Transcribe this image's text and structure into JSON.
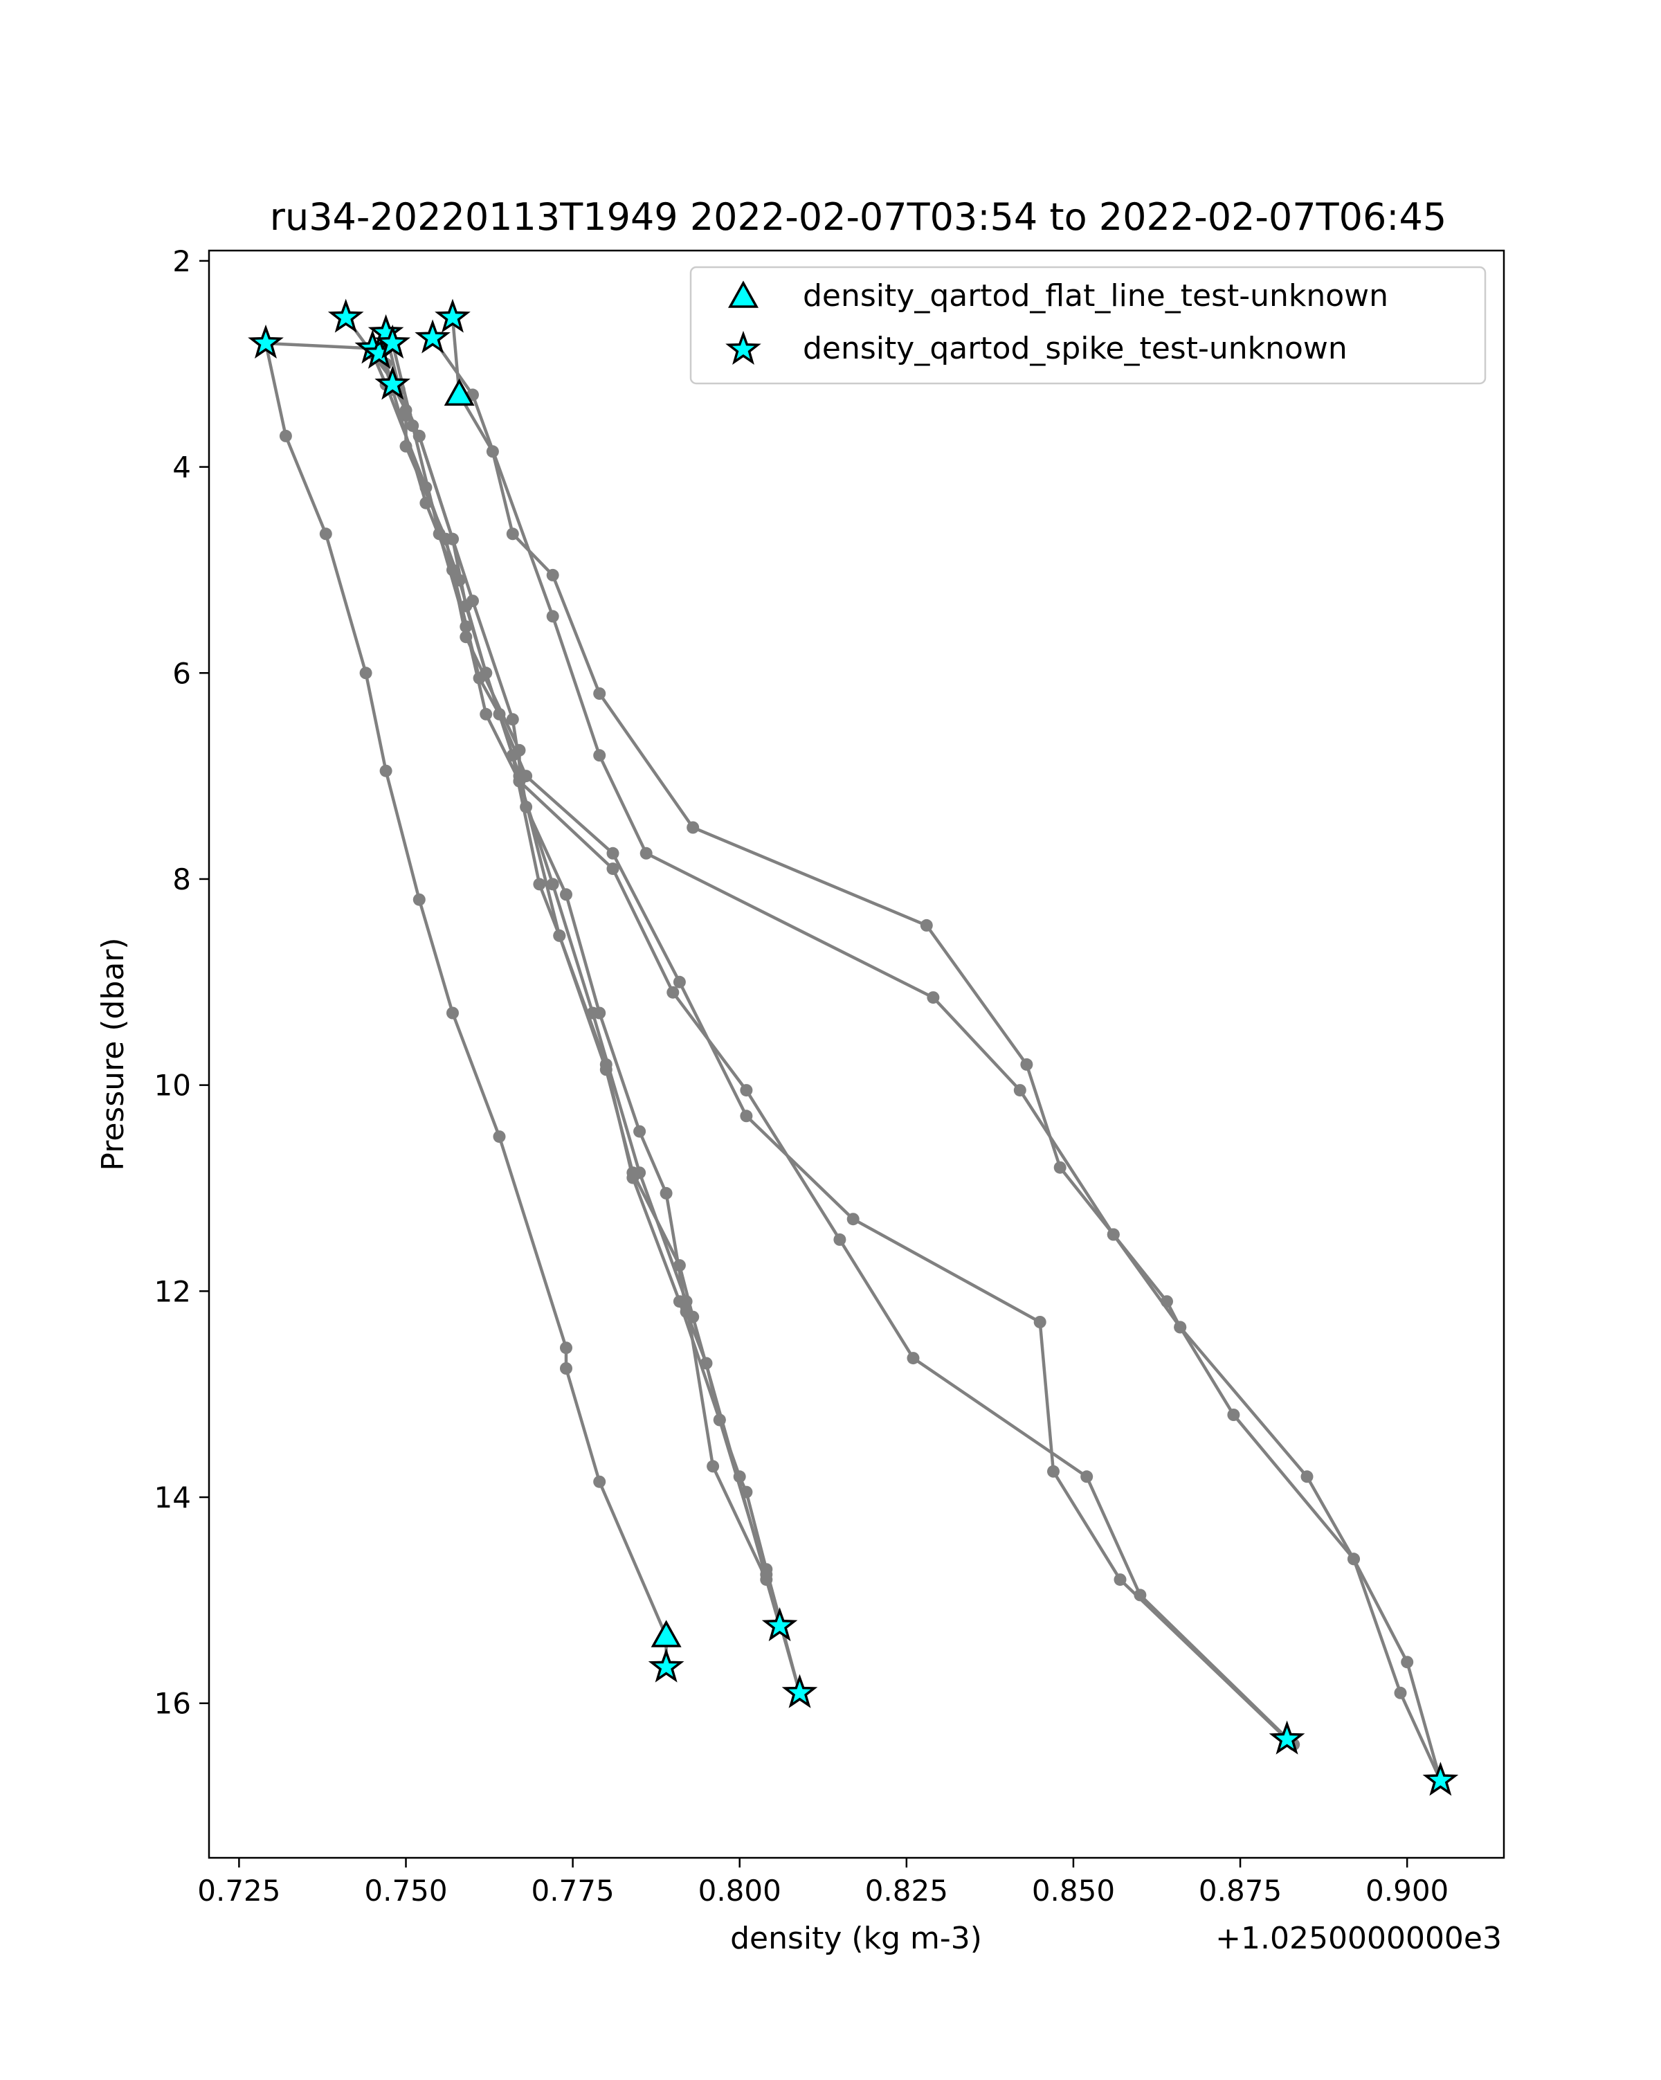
{
  "chart_data": {
    "type": "line",
    "title": "ru34-20220113T1949 2022-02-07T03:54 to 2022-02-07T06:45",
    "xlabel": "density (kg m-3)",
    "ylabel": "Pressure (dbar)",
    "x_offset_label": "+1.0250000000e3",
    "xlim": [
      1025.7205,
      1025.9145
    ],
    "ylim": [
      17.5,
      1.9
    ],
    "y_inverted": true,
    "xticks": [
      1025.725,
      1025.75,
      1025.775,
      1025.8,
      1025.825,
      1025.85,
      1025.875,
      1025.9
    ],
    "xtick_labels": [
      "0.725",
      "0.750",
      "0.775",
      "0.800",
      "0.825",
      "0.850",
      "0.875",
      "0.900"
    ],
    "yticks": [
      2,
      4,
      6,
      8,
      10,
      12,
      14,
      16
    ],
    "ytick_labels": [
      "2",
      "4",
      "6",
      "8",
      "10",
      "12",
      "14",
      "16"
    ],
    "grid": false,
    "legend_position": "top-right",
    "colors": {
      "line": "#808080",
      "flag_fill": "#00ffff",
      "flag_edge": "#000000"
    },
    "profiles": [
      {
        "points": [
          [
            1025.757,
            2.55
          ],
          [
            1025.758,
            3.3
          ],
          [
            1025.763,
            3.85
          ],
          [
            1025.766,
            4.65
          ],
          [
            1025.772,
            5.05
          ],
          [
            1025.779,
            6.2
          ],
          [
            1025.793,
            7.5
          ],
          [
            1025.828,
            8.45
          ],
          [
            1025.843,
            9.8
          ],
          [
            1025.848,
            10.8
          ],
          [
            1025.856,
            11.45
          ],
          [
            1025.864,
            12.1
          ],
          [
            1025.866,
            12.35
          ],
          [
            1025.885,
            13.8
          ],
          [
            1025.892,
            14.6
          ],
          [
            1025.9,
            15.6
          ],
          [
            1025.905,
            16.75
          ]
        ]
      },
      {
        "points": [
          [
            1025.754,
            2.75
          ],
          [
            1025.76,
            3.3
          ],
          [
            1025.772,
            5.45
          ],
          [
            1025.779,
            6.8
          ],
          [
            1025.786,
            7.75
          ],
          [
            1025.829,
            9.15
          ],
          [
            1025.842,
            10.05
          ],
          [
            1025.856,
            11.45
          ],
          [
            1025.866,
            12.35
          ],
          [
            1025.874,
            13.2
          ],
          [
            1025.892,
            14.6
          ],
          [
            1025.899,
            15.9
          ],
          [
            1025.905,
            16.75
          ]
        ]
      },
      {
        "points": [
          [
            1025.741,
            2.55
          ],
          [
            1025.749,
            3.25
          ],
          [
            1025.752,
            3.7
          ],
          [
            1025.757,
            4.7
          ],
          [
            1025.76,
            5.3
          ],
          [
            1025.766,
            6.45
          ],
          [
            1025.768,
            7.3
          ],
          [
            1025.774,
            8.15
          ],
          [
            1025.779,
            9.3
          ],
          [
            1025.785,
            10.45
          ],
          [
            1025.789,
            11.05
          ],
          [
            1025.792,
            12.2
          ],
          [
            1025.795,
            12.7
          ],
          [
            1025.797,
            13.25
          ],
          [
            1025.8,
            13.8
          ],
          [
            1025.801,
            13.95
          ],
          [
            1025.804,
            14.7
          ],
          [
            1025.809,
            15.9
          ]
        ]
      },
      {
        "points": [
          [
            1025.747,
            2.7
          ],
          [
            1025.75,
            3.5
          ],
          [
            1025.75,
            3.8
          ],
          [
            1025.756,
            4.7
          ],
          [
            1025.759,
            5.65
          ],
          [
            1025.767,
            6.75
          ],
          [
            1025.767,
            7.05
          ],
          [
            1025.772,
            8.05
          ],
          [
            1025.778,
            9.3
          ],
          [
            1025.785,
            10.85
          ],
          [
            1025.792,
            12.1
          ],
          [
            1025.796,
            13.7
          ],
          [
            1025.804,
            14.8
          ],
          [
            1025.806,
            15.25
          ]
        ]
      },
      {
        "points": [
          [
            1025.746,
            2.85
          ],
          [
            1025.748,
            3.25
          ],
          [
            1025.753,
            4.35
          ],
          [
            1025.757,
            5.0
          ],
          [
            1025.761,
            6.05
          ],
          [
            1025.764,
            6.4
          ],
          [
            1025.768,
            7.0
          ],
          [
            1025.781,
            7.75
          ],
          [
            1025.791,
            9.0
          ],
          [
            1025.801,
            10.3
          ],
          [
            1025.817,
            11.3
          ],
          [
            1025.845,
            12.3
          ],
          [
            1025.847,
            13.75
          ],
          [
            1025.857,
            14.8
          ],
          [
            1025.882,
            16.35
          ]
        ]
      },
      {
        "points": [
          [
            1025.748,
            2.8
          ],
          [
            1025.751,
            3.6
          ],
          [
            1025.755,
            4.65
          ],
          [
            1025.759,
            5.55
          ],
          [
            1025.762,
            6.4
          ],
          [
            1025.767,
            7.05
          ],
          [
            1025.781,
            7.9
          ],
          [
            1025.79,
            9.1
          ],
          [
            1025.801,
            10.05
          ],
          [
            1025.815,
            11.5
          ],
          [
            1025.826,
            12.65
          ],
          [
            1025.852,
            13.8
          ],
          [
            1025.86,
            14.95
          ],
          [
            1025.883,
            16.4
          ]
        ]
      },
      {
        "points": [
          [
            1025.745,
            2.9
          ],
          [
            1025.747,
            3.2
          ],
          [
            1025.753,
            4.2
          ],
          [
            1025.758,
            5.1
          ],
          [
            1025.762,
            6.0
          ],
          [
            1025.766,
            6.8
          ],
          [
            1025.77,
            8.05
          ],
          [
            1025.773,
            8.55
          ],
          [
            1025.78,
            9.85
          ],
          [
            1025.784,
            10.85
          ],
          [
            1025.791,
            11.75
          ],
          [
            1025.793,
            12.25
          ],
          [
            1025.806,
            15.25
          ]
        ]
      },
      {
        "points": [
          [
            1025.729,
            2.8
          ],
          [
            1025.745,
            2.85
          ],
          [
            1025.747,
            3.0
          ],
          [
            1025.748,
            3.2
          ],
          [
            1025.75,
            3.45
          ],
          [
            1025.752,
            3.7
          ],
          [
            1025.757,
            4.7
          ],
          [
            1025.759,
            5.35
          ],
          [
            1025.762,
            6.0
          ],
          [
            1025.767,
            7.0
          ],
          [
            1025.773,
            8.55
          ],
          [
            1025.78,
            9.8
          ],
          [
            1025.784,
            10.9
          ],
          [
            1025.791,
            12.1
          ],
          [
            1025.797,
            13.25
          ],
          [
            1025.804,
            14.75
          ],
          [
            1025.809,
            15.9
          ]
        ]
      },
      {
        "points": [
          [
            1025.729,
            2.8
          ],
          [
            1025.732,
            3.7
          ],
          [
            1025.738,
            4.65
          ],
          [
            1025.744,
            6.0
          ],
          [
            1025.747,
            6.95
          ],
          [
            1025.752,
            8.2
          ],
          [
            1025.757,
            9.3
          ],
          [
            1025.764,
            10.5
          ],
          [
            1025.774,
            12.55
          ],
          [
            1025.774,
            12.75
          ],
          [
            1025.779,
            13.85
          ],
          [
            1025.789,
            15.35
          ],
          [
            1025.789,
            15.65
          ]
        ]
      }
    ],
    "series": [
      {
        "name": "density_qartod_flat_line_test-unknown",
        "marker": "triangle",
        "points": [
          [
            1025.758,
            3.3
          ],
          [
            1025.789,
            15.35
          ]
        ]
      },
      {
        "name": "density_qartod_spike_test-unknown",
        "marker": "star",
        "points": [
          [
            1025.729,
            2.8
          ],
          [
            1025.741,
            2.55
          ],
          [
            1025.745,
            2.85
          ],
          [
            1025.746,
            2.9
          ],
          [
            1025.747,
            2.7
          ],
          [
            1025.748,
            2.8
          ],
          [
            1025.748,
            3.2
          ],
          [
            1025.754,
            2.75
          ],
          [
            1025.757,
            2.55
          ],
          [
            1025.789,
            15.65
          ],
          [
            1025.806,
            15.25
          ],
          [
            1025.809,
            15.9
          ],
          [
            1025.882,
            16.35
          ],
          [
            1025.905,
            16.75
          ]
        ]
      }
    ]
  }
}
